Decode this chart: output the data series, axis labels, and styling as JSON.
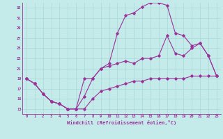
{
  "xlabel": "Windchill (Refroidissement éolien,°C)",
  "bg_color": "#c5eaea",
  "line_color": "#993399",
  "grid_color": "#a8d8d8",
  "ylim": [
    12,
    34
  ],
  "xlim": [
    -0.5,
    23.5
  ],
  "yticks": [
    13,
    15,
    17,
    19,
    21,
    23,
    25,
    27,
    29,
    31,
    33
  ],
  "xticks": [
    0,
    1,
    2,
    3,
    4,
    5,
    6,
    7,
    8,
    9,
    10,
    11,
    12,
    13,
    14,
    15,
    16,
    17,
    18,
    19,
    20,
    21,
    22,
    23
  ],
  "line1_x": [
    0,
    1,
    2,
    3,
    4,
    5,
    6,
    7,
    8,
    9,
    10,
    11,
    12,
    13,
    14,
    15,
    16,
    17,
    18,
    19,
    20,
    21,
    22,
    23
  ],
  "line1_y": [
    19,
    18,
    16,
    14.5,
    14,
    13,
    13,
    19,
    19,
    21,
    22,
    28,
    31.5,
    32,
    33.2,
    34,
    34,
    33.5,
    28,
    27.5,
    25.5,
    26,
    23.5,
    19.5
  ],
  "line2_x": [
    0,
    1,
    2,
    3,
    4,
    5,
    6,
    7,
    8,
    9,
    10,
    11,
    12,
    13,
    14,
    15,
    16,
    17,
    18,
    19,
    20,
    21,
    22,
    23
  ],
  "line2_y": [
    19,
    18,
    16,
    14.5,
    14,
    13,
    13,
    15.5,
    19,
    21,
    21.5,
    22,
    22.5,
    22,
    23,
    23,
    23.5,
    27.5,
    24,
    23.5,
    25,
    26,
    23.5,
    19.5
  ],
  "line3_x": [
    0,
    1,
    2,
    3,
    4,
    5,
    6,
    7,
    8,
    9,
    10,
    11,
    12,
    13,
    14,
    15,
    16,
    17,
    18,
    19,
    20,
    21,
    22,
    23
  ],
  "line3_y": [
    19,
    18,
    16,
    14.5,
    14,
    13,
    13,
    13,
    15,
    16.5,
    17,
    17.5,
    18,
    18.5,
    18.5,
    19,
    19,
    19,
    19,
    19,
    19.5,
    19.5,
    19.5,
    19.5
  ]
}
